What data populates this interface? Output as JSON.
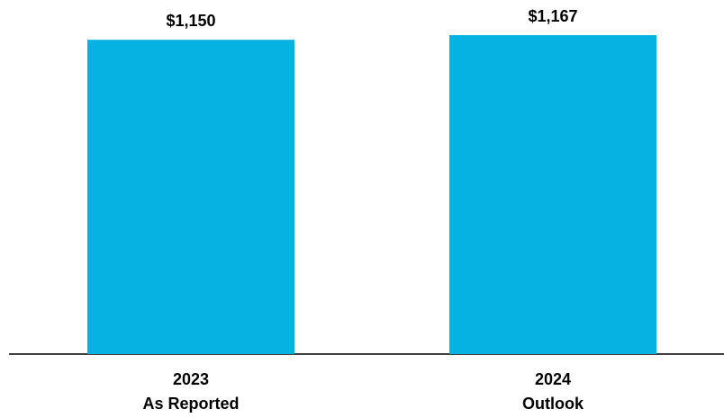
{
  "chart_data": {
    "type": "bar",
    "categories": [
      [
        "2023",
        "As Reported"
      ],
      [
        "2024",
        "Outlook"
      ]
    ],
    "values": [
      1150,
      1167
    ],
    "value_labels": [
      "$1,150",
      "$1,167"
    ],
    "color": "#05b2e1"
  }
}
